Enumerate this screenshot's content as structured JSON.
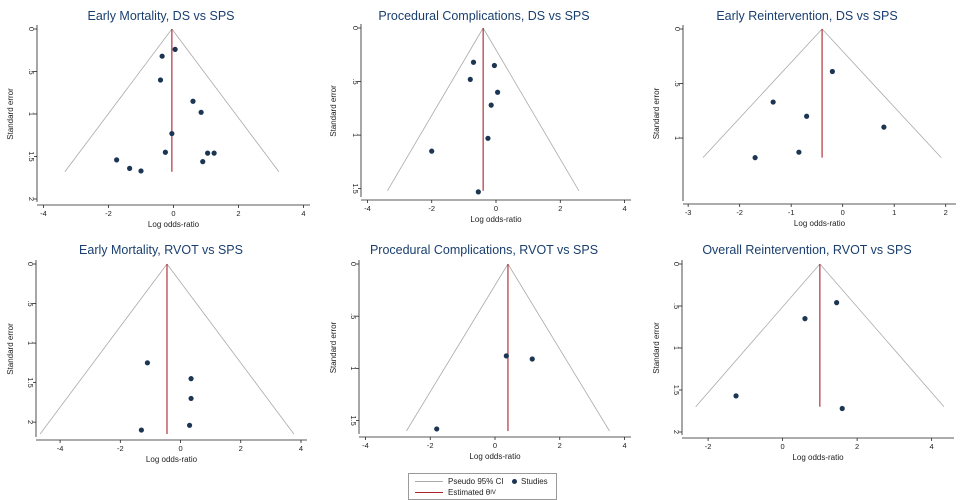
{
  "colors": {
    "ci": "#aaaaaa",
    "estimate": "#a8232d",
    "study": "#1c3553",
    "title": "#1a3f6f",
    "axis": "#222222"
  },
  "legend": {
    "ci_label": "Pseudo 95% CI",
    "studies_label": "Studies",
    "estimate_label": "Estimated θ",
    "estimate_sub": "IV"
  },
  "chart_data": [
    {
      "type": "scatter",
      "title": "Early Mortality, DS vs SPS",
      "xlabel": "Log odds-ratio",
      "ylabel": "Standard error",
      "xlim": [
        -4.2,
        4.2
      ],
      "ylim": [
        0,
        2
      ],
      "xticks": [
        -4,
        -2,
        0,
        2,
        4
      ],
      "xtick_labels": [
        "-4",
        "-2",
        "0",
        "2",
        "4"
      ],
      "yticks": [
        0,
        0.5,
        1,
        1.5,
        2
      ],
      "ytick_labels": [
        "0",
        ".5",
        "1",
        "1.5",
        "2"
      ],
      "estimate": -0.05,
      "ci_max_se": 1.68,
      "points": [
        [
          -0.35,
          0.32
        ],
        [
          0.05,
          0.24
        ],
        [
          -0.4,
          0.6
        ],
        [
          0.6,
          0.85
        ],
        [
          0.85,
          0.98
        ],
        [
          -0.05,
          1.23
        ],
        [
          -0.25,
          1.45
        ],
        [
          1.05,
          1.46
        ],
        [
          1.25,
          1.46
        ],
        [
          0.9,
          1.56
        ],
        [
          -1.75,
          1.54
        ],
        [
          -1.35,
          1.64
        ],
        [
          -1.0,
          1.67
        ]
      ]
    },
    {
      "type": "scatter",
      "title": "Procedural Complications, DS vs SPS",
      "xlabel": "Log odds-ratio",
      "ylabel": "Standard error",
      "xlim": [
        -4.2,
        4.2
      ],
      "ylim": [
        0,
        1.55
      ],
      "xticks": [
        -4,
        -2,
        0,
        2,
        4
      ],
      "xtick_labels": [
        "-4",
        "-2",
        "0",
        "2",
        "4"
      ],
      "yticks": [
        0,
        0.5,
        1,
        1.5
      ],
      "ytick_labels": [
        "0",
        ".5",
        "1",
        "1.5"
      ],
      "estimate": -0.4,
      "ci_max_se": 1.52,
      "points": [
        [
          -0.7,
          0.32
        ],
        [
          -0.05,
          0.35
        ],
        [
          -0.8,
          0.48
        ],
        [
          0.05,
          0.6
        ],
        [
          -0.15,
          0.72
        ],
        [
          -0.25,
          1.03
        ],
        [
          -2.0,
          1.15
        ],
        [
          -0.55,
          1.53
        ]
      ]
    },
    {
      "type": "scatter",
      "title": "Early Reintervention, DS vs SPS",
      "xlabel": "Log odds-ratio",
      "ylabel": "Standard error",
      "xlim": [
        -3.1,
        2.2
      ],
      "ylim": [
        0,
        1.55
      ],
      "xticks": [
        -3,
        -2,
        -1,
        0,
        1,
        2
      ],
      "xtick_labels": [
        "-3",
        "-2",
        "-1",
        "0",
        "1",
        "2"
      ],
      "yticks": [
        0,
        0.5,
        1
      ],
      "ytick_labels": [
        "0",
        ".5",
        "1"
      ],
      "estimate": -0.4,
      "ci_max_se": 1.18,
      "points": [
        [
          -0.2,
          0.39
        ],
        [
          -1.35,
          0.67
        ],
        [
          -0.7,
          0.8
        ],
        [
          0.8,
          0.9
        ],
        [
          -0.85,
          1.13
        ],
        [
          -1.7,
          1.18
        ]
      ]
    },
    {
      "type": "scatter",
      "title": "Early Mortality, RVOT vs SPS",
      "xlabel": "Log odds-ratio",
      "ylabel": "Standard error",
      "xlim": [
        -4.8,
        4.2
      ],
      "ylim": [
        0,
        2.15
      ],
      "xticks": [
        -4,
        -2,
        0,
        2,
        4
      ],
      "xtick_labels": [
        "-4",
        "-2",
        "0",
        "2",
        "4"
      ],
      "yticks": [
        0,
        0.5,
        1,
        1.5,
        2
      ],
      "ytick_labels": [
        "0",
        ".5",
        "1",
        "1.5",
        "2"
      ],
      "estimate": -0.45,
      "ci_max_se": 2.15,
      "points": [
        [
          -1.1,
          1.25
        ],
        [
          0.35,
          1.45
        ],
        [
          0.35,
          1.7
        ],
        [
          0.3,
          2.04
        ],
        [
          -1.3,
          2.1
        ]
      ]
    },
    {
      "type": "scatter",
      "title": "Procedural Complications, RVOT vs SPS",
      "xlabel": "Log odds-ratio",
      "ylabel": "Standard error",
      "xlim": [
        -4.2,
        4.2
      ],
      "ylim": [
        0,
        1.6
      ],
      "xticks": [
        -4,
        -2,
        0,
        2,
        4
      ],
      "xtick_labels": [
        "-4",
        "-2",
        "0",
        "2",
        "4"
      ],
      "yticks": [
        0,
        0.5,
        1,
        1.5
      ],
      "ytick_labels": [
        "0",
        ".5",
        "1",
        "1.5"
      ],
      "estimate": 0.4,
      "ci_max_se": 1.6,
      "points": [
        [
          0.35,
          0.88
        ],
        [
          1.15,
          0.91
        ],
        [
          -1.8,
          1.58
        ]
      ]
    },
    {
      "type": "scatter",
      "title": "Overall Reintervention, RVOT vs SPS",
      "xlabel": "Log odds-ratio",
      "ylabel": "Standard error",
      "xlim": [
        -2.7,
        4.6
      ],
      "ylim": [
        0,
        2
      ],
      "xticks": [
        -2,
        0,
        2,
        4
      ],
      "xtick_labels": [
        "-2",
        "0",
        "2",
        "4"
      ],
      "yticks": [
        0,
        0.5,
        1,
        1.5,
        2
      ],
      "ytick_labels": [
        "0",
        ".5",
        "1",
        "1.5",
        "2"
      ],
      "estimate": 1.0,
      "ci_max_se": 1.7,
      "points": [
        [
          1.45,
          0.46
        ],
        [
          0.6,
          0.65
        ],
        [
          -1.25,
          1.57
        ],
        [
          1.6,
          1.72
        ]
      ]
    }
  ]
}
